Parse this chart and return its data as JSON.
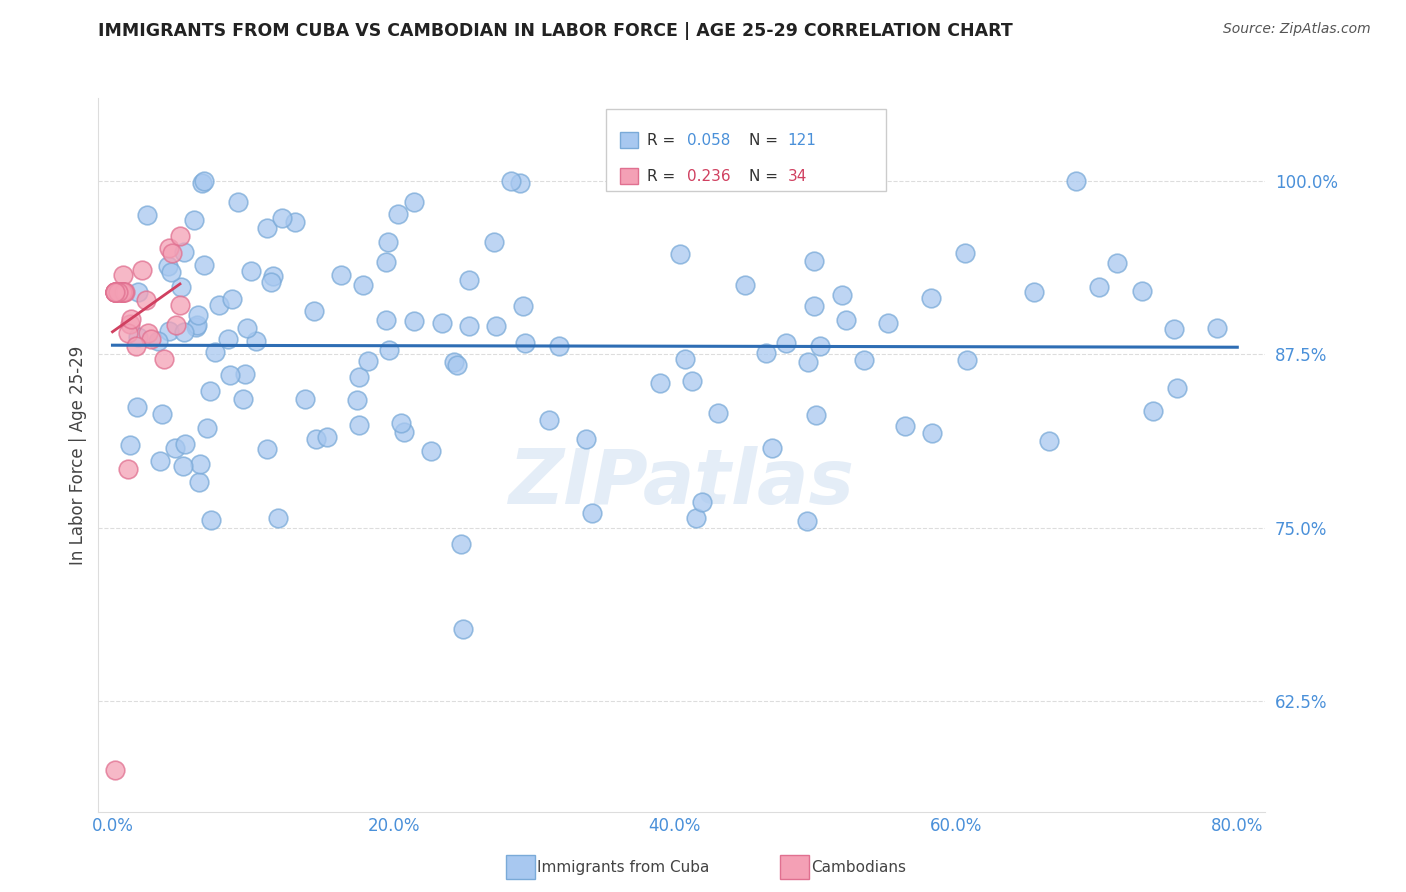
{
  "title": "IMMIGRANTS FROM CUBA VS CAMBODIAN IN LABOR FORCE | AGE 25-29 CORRELATION CHART",
  "source": "Source: ZipAtlas.com",
  "ylabel": "In Labor Force | Age 25-29",
  "x_tick_labels": [
    "0.0%",
    "20.0%",
    "40.0%",
    "60.0%",
    "80.0%"
  ],
  "x_tick_values": [
    0.0,
    0.2,
    0.4,
    0.6,
    0.8
  ],
  "y_tick_labels": [
    "62.5%",
    "75.0%",
    "87.5%",
    "100.0%"
  ],
  "y_tick_values": [
    0.625,
    0.75,
    0.875,
    1.0
  ],
  "xlim": [
    -0.01,
    0.82
  ],
  "ylim": [
    0.545,
    1.06
  ],
  "cuba_R": 0.058,
  "cuba_N": 121,
  "cambodian_R": 0.236,
  "cambodian_N": 34,
  "legend_label_cuba": "Immigrants from Cuba",
  "legend_label_cambodian": "Cambodians",
  "cuba_color": "#A8C8F0",
  "cambodian_color": "#F4A0B5",
  "cuba_edge_color": "#7AAAD8",
  "cambodian_edge_color": "#E07090",
  "cuba_line_color": "#2E6DB4",
  "cambodian_line_color": "#D04060",
  "axis_color": "#4A90D9",
  "watermark": "ZIPatlas",
  "background_color": "#FFFFFF",
  "grid_color": "#DDDDDD",
  "title_color": "#222222",
  "source_color": "#555555",
  "legend_text_color": "#333333"
}
